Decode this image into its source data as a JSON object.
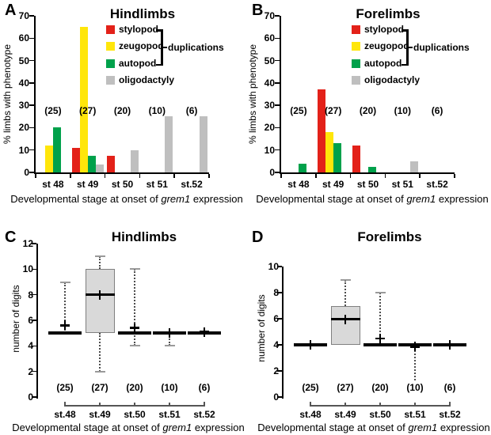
{
  "figure": {
    "xlabel_prefix": "Developmental stage at onset of ",
    "xlabel_italic": "grem1",
    "xlabel_suffix": " expression",
    "background": "#ffffff"
  },
  "legend": {
    "bracket_label": "duplications",
    "items": [
      {
        "label": "stylopod",
        "color": "#e32119"
      },
      {
        "label": "zeugopod",
        "color": "#ffe60a"
      },
      {
        "label": "autopod",
        "color": "#00a14b"
      },
      {
        "label": "oligodactyly",
        "color": "#bfbfbf"
      }
    ]
  },
  "chart_data": [
    {
      "panel_letter": "A",
      "type": "bar",
      "title": "Hindlimbs",
      "ylabel": "% limbs with phenotype",
      "ylim": [
        0,
        70
      ],
      "yticks": [
        0,
        10,
        20,
        30,
        40,
        50,
        60,
        70
      ],
      "categories": [
        "st 48",
        "st 49",
        "st 50",
        "st 51",
        "st.52"
      ],
      "counts": [
        "(25)",
        "(27)",
        "(20)",
        "(10)",
        "(6)"
      ],
      "counts_y": 27.5,
      "legend": true,
      "grid": false,
      "legend_position": "top-right-inside",
      "series": [
        {
          "name": "stylopod",
          "color": "#e32119",
          "values": [
            0,
            11,
            7.5,
            0,
            0
          ]
        },
        {
          "name": "zeugopod",
          "color": "#ffe60a",
          "values": [
            12,
            65,
            0,
            0,
            0
          ]
        },
        {
          "name": "autopod",
          "color": "#00a14b",
          "values": [
            20,
            7.4,
            0,
            0,
            0
          ]
        },
        {
          "name": "oligodactyly",
          "color": "#bfbfbf",
          "values": [
            0,
            3.7,
            10,
            25,
            25
          ]
        }
      ]
    },
    {
      "panel_letter": "B",
      "type": "bar",
      "title": "Forelimbs",
      "ylabel": "% limbs with phenotype",
      "ylim": [
        0,
        70
      ],
      "yticks": [
        0,
        10,
        20,
        30,
        40,
        50,
        60,
        70
      ],
      "categories": [
        "st 48",
        "st 49",
        "st 50",
        "st 51",
        "st.52"
      ],
      "counts": [
        "(25)",
        "(27)",
        "(20)",
        "(10)",
        "(6)"
      ],
      "counts_y": 27.5,
      "legend": true,
      "grid": false,
      "legend_position": "top-right-inside",
      "series": [
        {
          "name": "stylopod",
          "color": "#e32119",
          "values": [
            0,
            37,
            12,
            0,
            0
          ]
        },
        {
          "name": "zeugopod",
          "color": "#ffe60a",
          "values": [
            0,
            18,
            0,
            0,
            0
          ]
        },
        {
          "name": "autopod",
          "color": "#00a14b",
          "values": [
            4,
            13,
            2.5,
            0,
            0
          ]
        },
        {
          "name": "oligodactyly",
          "color": "#bfbfbf",
          "values": [
            0,
            0,
            0,
            5,
            0
          ]
        }
      ]
    },
    {
      "panel_letter": "C",
      "type": "box",
      "title": "Hindlimbs",
      "ylabel": "number of digits",
      "ylim": [
        0,
        12
      ],
      "yticks": [
        0,
        2,
        4,
        6,
        8,
        10,
        12
      ],
      "categories": [
        "st.48",
        "st.49",
        "st.50",
        "st.51",
        "st.52"
      ],
      "counts": [
        "(25)",
        "(27)",
        "(20)",
        "(10)",
        "(6)"
      ],
      "counts_y": 0.75,
      "legend": false,
      "grid": false,
      "boxes": [
        {
          "median": 5,
          "q1": null,
          "q3": null,
          "whisker_low": null,
          "whisker_high": 9,
          "mean": 5.6
        },
        {
          "median": 8,
          "q1": 5,
          "q3": 10,
          "whisker_low": 2,
          "whisker_high": 11,
          "mean": 8
        },
        {
          "median": 5,
          "q1": null,
          "q3": null,
          "whisker_low": 4,
          "whisker_high": 10,
          "mean": 5.4
        },
        {
          "median": 5,
          "q1": null,
          "q3": null,
          "whisker_low": 4,
          "whisker_high": null,
          "mean": 5
        },
        {
          "median": 5,
          "q1": null,
          "q3": null,
          "whisker_low": null,
          "whisker_high": null,
          "mean": 5.1
        }
      ]
    },
    {
      "panel_letter": "D",
      "type": "box",
      "title": "Forelimbs",
      "ylabel": "number of digits",
      "ylim": [
        0,
        10
      ],
      "yticks": [
        0,
        2,
        4,
        6,
        8,
        10
      ],
      "categories": [
        "st.48",
        "st.49",
        "st.50",
        "st.51",
        "st.52"
      ],
      "counts": [
        "(25)",
        "(27)",
        "(20)",
        "(10)",
        "(6)"
      ],
      "counts_y": 0.75,
      "legend": false,
      "grid": false,
      "boxes": [
        {
          "median": 4,
          "q1": null,
          "q3": null,
          "whisker_low": null,
          "whisker_high": null,
          "mean": 4
        },
        {
          "median": 6,
          "q1": 4,
          "q3": 7,
          "whisker_low": null,
          "whisker_high": 9,
          "mean": 5.95
        },
        {
          "median": 4,
          "q1": null,
          "q3": null,
          "whisker_low": null,
          "whisker_high": 8,
          "mean": 4.5
        },
        {
          "median": 4,
          "q1": null,
          "q3": null,
          "whisker_low": 1.3,
          "whisker_low_cap": false,
          "whisker_high": null,
          "mean": 3.85
        },
        {
          "median": 4,
          "q1": null,
          "q3": null,
          "whisker_low": null,
          "whisker_high": null,
          "mean": 4
        }
      ]
    }
  ]
}
